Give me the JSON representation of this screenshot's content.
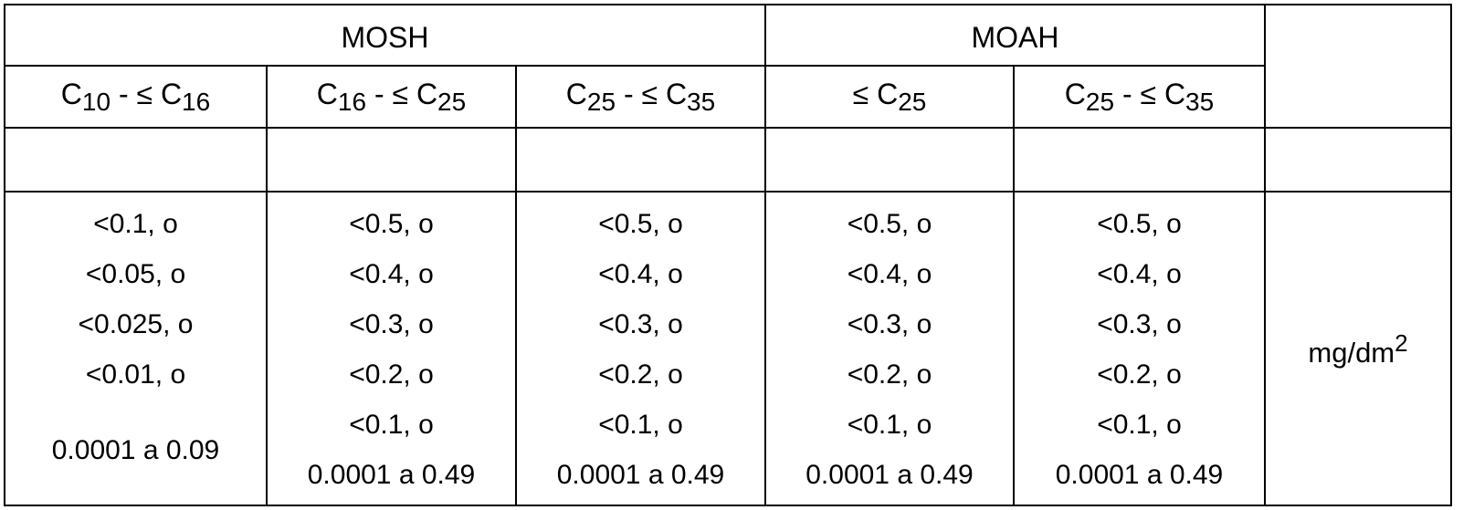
{
  "groups": {
    "mosh": "MOSH",
    "moah": "MOAH"
  },
  "columns": [
    {
      "base": "C",
      "sub1": "10",
      "mid": " - ≤ C",
      "sub2": "16"
    },
    {
      "base": "C",
      "sub1": "16",
      "mid": " - ≤ C",
      "sub2": "25"
    },
    {
      "base": "C",
      "sub1": "25",
      "mid": " - ≤ C",
      "sub2": "35"
    },
    {
      "base": "",
      "sub1": "",
      "mid": "≤ C",
      "sub2": "25"
    },
    {
      "base": "C",
      "sub1": "25",
      "mid": " - ≤ C",
      "sub2": "35"
    }
  ],
  "values": [
    [
      "<0.1, o",
      "<0.05, o",
      "<0.025, o",
      "<0.01, o",
      "0.0001 a 0.09"
    ],
    [
      "<0.5, o",
      "<0.4, o",
      "<0.3, o",
      "<0.2, o",
      "<0.1, o",
      "0.0001 a 0.49"
    ],
    [
      "<0.5, o",
      "<0.4, o",
      "<0.3, o",
      "<0.2, o",
      "<0.1, o",
      "0.0001 a 0.49"
    ],
    [
      "<0.5, o",
      "<0.4, o",
      "<0.3, o",
      "<0.2, o",
      "<0.1, o",
      "0.0001 a 0.49"
    ],
    [
      "<0.5, o",
      "<0.4, o",
      "<0.3, o",
      "<0.2, o",
      "<0.1, o",
      "0.0001 a 0.49"
    ]
  ],
  "unit": {
    "base": "mg/dm",
    "exp": "2"
  }
}
